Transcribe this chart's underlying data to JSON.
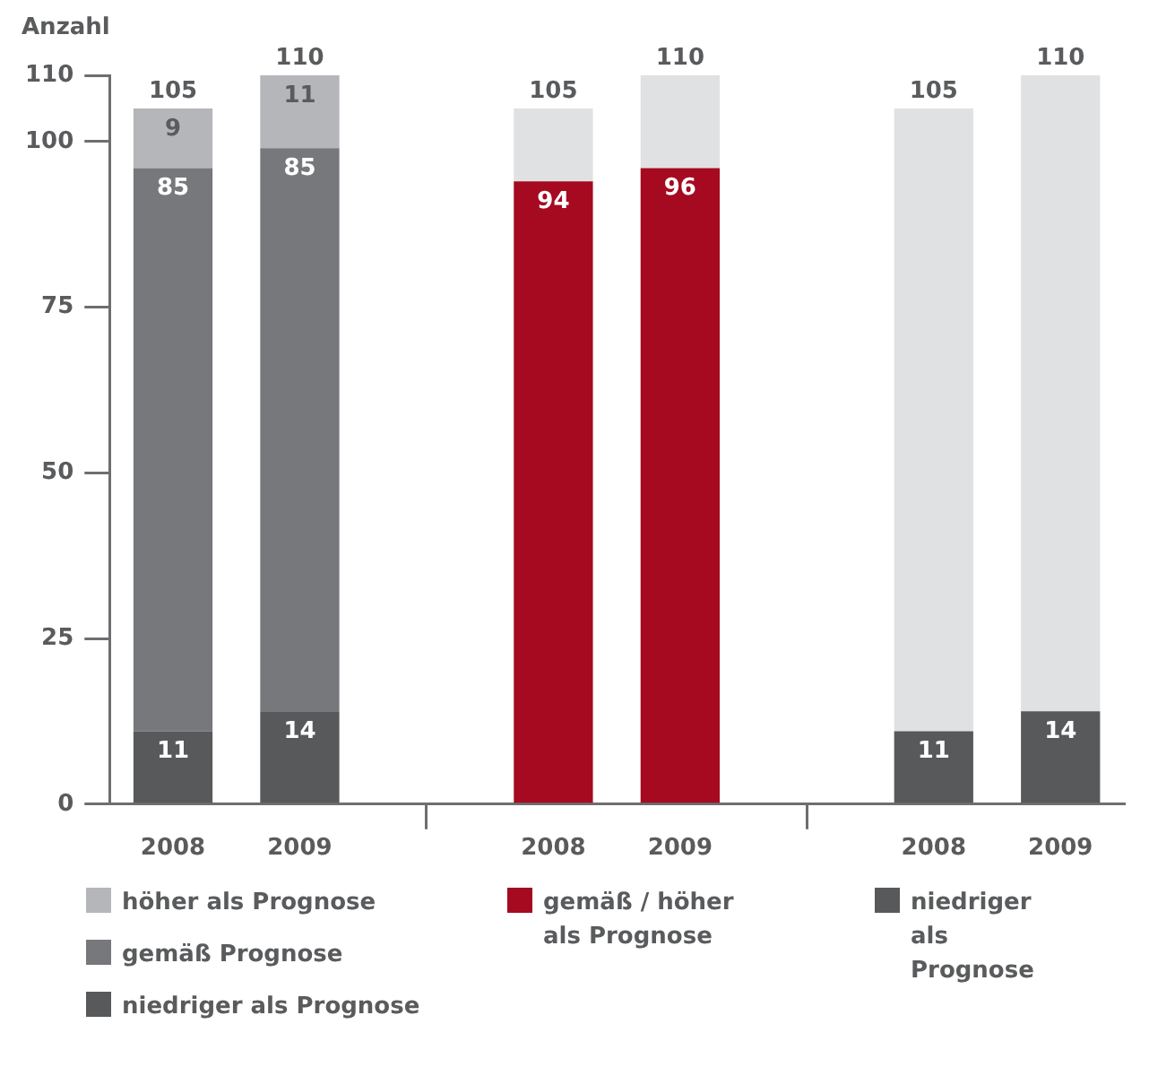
{
  "chart_data": {
    "type": "bar",
    "ylabel": "Anzahl",
    "categories": [
      "2008",
      "2009",
      null,
      "2008",
      "2009",
      null,
      "2008",
      "2009"
    ],
    "stacked": true,
    "ylim": [
      0,
      110
    ],
    "yticks": [
      0,
      25,
      50,
      75,
      100,
      110
    ],
    "grid": false,
    "legend": "bottom",
    "totals": [
      "105",
      "110",
      null,
      "105",
      "110",
      null,
      "105",
      "110"
    ],
    "series": [
      {
        "name": "niedriger als Prognose",
        "color": "#58595b",
        "values": [
          11,
          14,
          null,
          null,
          null,
          null,
          null,
          null
        ],
        "value_labels": [
          "11",
          "14",
          null,
          null,
          null,
          null,
          null,
          null
        ]
      },
      {
        "name": "gemäß Prognose",
        "color": "#77787c",
        "values": [
          85,
          85,
          null,
          null,
          null,
          null,
          null,
          null
        ],
        "value_labels": [
          "85",
          "85",
          null,
          null,
          null,
          null,
          null,
          null
        ]
      },
      {
        "name": "höher als Prognose",
        "color": "#b5b6ba",
        "values": [
          9,
          11,
          null,
          null,
          null,
          null,
          null,
          null
        ],
        "value_labels": [
          "9",
          "11",
          null,
          null,
          null,
          null,
          null,
          null
        ]
      },
      {
        "name": "gemäß / höher als Prognose",
        "color": "#a50a20",
        "values": [
          null,
          null,
          null,
          94,
          96,
          null,
          null,
          null
        ],
        "value_labels": [
          null,
          null,
          null,
          "94",
          "96",
          null,
          null,
          null
        ]
      },
      {
        "name": "niedriger als Prognose",
        "color": "#58595b",
        "values": [
          null,
          null,
          null,
          null,
          null,
          null,
          11,
          14
        ],
        "value_labels": [
          null,
          null,
          null,
          null,
          null,
          null,
          "11",
          "14"
        ]
      },
      {
        "color": "#e0e1e3",
        "values": [
          null,
          null,
          null,
          11,
          14,
          null,
          94,
          96
        ]
      }
    ]
  }
}
